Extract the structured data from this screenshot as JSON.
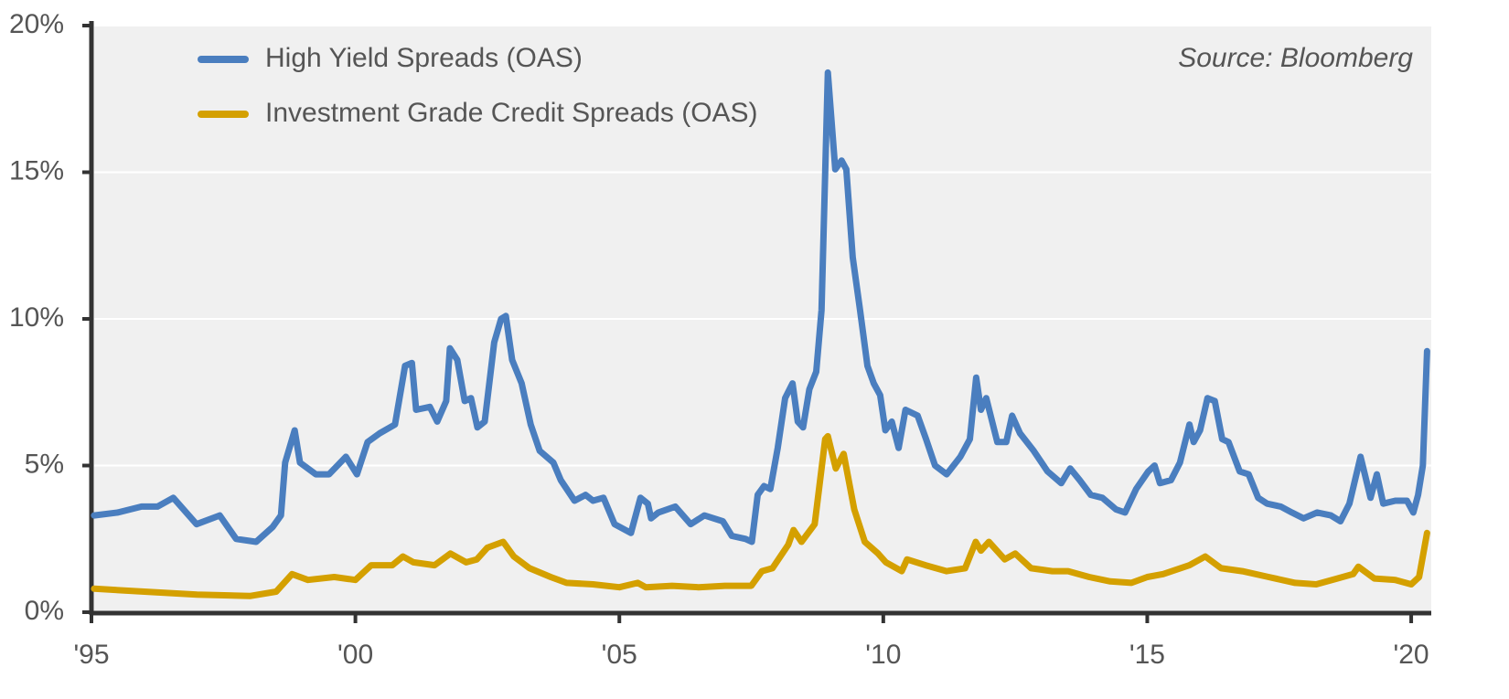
{
  "chart_data": {
    "type": "line",
    "annotation": "Source: Bloomberg",
    "xlim": [
      1995,
      2020.38
    ],
    "xticks": [
      {
        "value": 1995,
        "label": "'95"
      },
      {
        "value": 2000,
        "label": "'00"
      },
      {
        "value": 2005,
        "label": "'05"
      },
      {
        "value": 2010,
        "label": "'10"
      },
      {
        "value": 2015,
        "label": "'15"
      },
      {
        "value": 2020,
        "label": "'20"
      }
    ],
    "ylim": [
      0,
      20
    ],
    "yticks": [
      {
        "value": 0,
        "label": "0%"
      },
      {
        "value": 5,
        "label": "5%"
      },
      {
        "value": 10,
        "label": "10%"
      },
      {
        "value": 15,
        "label": "15%"
      },
      {
        "value": 20,
        "label": "20%"
      }
    ],
    "grid": true,
    "legend": "top-left",
    "series": [
      {
        "name": "High Yield Spreads (OAS)",
        "color": "#4a7ebf",
        "x": [
          1995.05,
          1995.5,
          1995.95,
          1996.25,
          1996.55,
          1996.99,
          1997.43,
          1997.74,
          1998.12,
          1998.43,
          1998.59,
          1998.67,
          1998.85,
          1998.95,
          1999.25,
          1999.5,
          1999.82,
          2000.03,
          2000.23,
          2000.46,
          2000.75,
          2000.94,
          2001.07,
          2001.15,
          2001.41,
          2001.55,
          2001.72,
          2001.79,
          2001.93,
          2002.07,
          2002.19,
          2002.31,
          2002.45,
          2002.63,
          2002.76,
          2002.85,
          2002.97,
          2003.15,
          2003.32,
          2003.49,
          2003.75,
          2003.89,
          2004.15,
          2004.36,
          2004.5,
          2004.7,
          2004.91,
          2005.22,
          2005.4,
          2005.54,
          2005.6,
          2005.74,
          2006.06,
          2006.35,
          2006.61,
          2006.96,
          2007.13,
          2007.39,
          2007.51,
          2007.62,
          2007.74,
          2007.86,
          2008.0,
          2008.14,
          2008.28,
          2008.38,
          2008.48,
          2008.6,
          2008.73,
          2008.83,
          2008.95,
          2009.09,
          2009.21,
          2009.3,
          2009.42,
          2009.56,
          2009.7,
          2009.82,
          2009.94,
          2010.04,
          2010.16,
          2010.29,
          2010.42,
          2010.65,
          2010.81,
          2010.98,
          2011.2,
          2011.46,
          2011.64,
          2011.76,
          2011.85,
          2011.95,
          2012.16,
          2012.33,
          2012.44,
          2012.59,
          2012.85,
          2013.11,
          2013.37,
          2013.54,
          2013.72,
          2013.93,
          2014.15,
          2014.41,
          2014.58,
          2014.79,
          2015.02,
          2015.14,
          2015.24,
          2015.45,
          2015.62,
          2015.8,
          2015.88,
          2016.0,
          2016.14,
          2016.28,
          2016.42,
          2016.54,
          2016.75,
          2016.92,
          2017.1,
          2017.27,
          2017.53,
          2017.74,
          2017.96,
          2018.22,
          2018.48,
          2018.66,
          2018.83,
          2019.04,
          2019.23,
          2019.35,
          2019.47,
          2019.7,
          2019.92,
          2020.04,
          2020.13,
          2020.22,
          2020.3
        ],
        "values": [
          3.3,
          3.4,
          3.6,
          3.6,
          3.9,
          3.0,
          3.3,
          2.5,
          2.4,
          2.9,
          3.3,
          5.1,
          6.2,
          5.1,
          4.7,
          4.7,
          5.3,
          4.7,
          5.8,
          6.1,
          6.4,
          8.4,
          8.5,
          6.9,
          7.0,
          6.5,
          7.2,
          9.0,
          8.6,
          7.2,
          7.3,
          6.3,
          6.5,
          9.2,
          10.0,
          10.1,
          8.6,
          7.8,
          6.4,
          5.5,
          5.1,
          4.5,
          3.8,
          4.0,
          3.8,
          3.9,
          3.0,
          2.7,
          3.9,
          3.7,
          3.2,
          3.4,
          3.6,
          3.0,
          3.3,
          3.1,
          2.6,
          2.5,
          2.4,
          4.0,
          4.3,
          4.2,
          5.6,
          7.3,
          7.8,
          6.5,
          6.3,
          7.6,
          8.2,
          10.3,
          18.4,
          15.1,
          15.4,
          15.1,
          12.1,
          10.3,
          8.4,
          7.8,
          7.4,
          6.2,
          6.5,
          5.6,
          6.9,
          6.7,
          5.9,
          5.0,
          4.7,
          5.3,
          5.9,
          8.0,
          6.9,
          7.3,
          5.8,
          5.8,
          6.7,
          6.1,
          5.5,
          4.8,
          4.4,
          4.9,
          4.5,
          4.0,
          3.9,
          3.5,
          3.4,
          4.2,
          4.8,
          5.0,
          4.4,
          4.5,
          5.1,
          6.4,
          5.8,
          6.2,
          7.3,
          7.2,
          5.9,
          5.8,
          4.8,
          4.7,
          3.9,
          3.7,
          3.6,
          3.4,
          3.2,
          3.4,
          3.3,
          3.1,
          3.7,
          5.3,
          3.9,
          4.7,
          3.7,
          3.8,
          3.8,
          3.4,
          4.0,
          5.0,
          8.9
        ]
      },
      {
        "name": "Investment Grade Credit Spreads (OAS)",
        "color": "#d4a000",
        "x": [
          1995.05,
          1996.0,
          1997.0,
          1998.0,
          1998.5,
          1998.8,
          1999.1,
          1999.6,
          2000.0,
          2000.3,
          2000.7,
          2000.9,
          2001.1,
          2001.5,
          2001.8,
          2002.1,
          2002.3,
          2002.5,
          2002.8,
          2003.0,
          2003.3,
          2003.7,
          2004.0,
          2004.5,
          2005.0,
          2005.35,
          2005.5,
          2006.0,
          2006.5,
          2007.0,
          2007.5,
          2007.7,
          2007.9,
          2008.2,
          2008.3,
          2008.45,
          2008.7,
          2008.9,
          2008.95,
          2009.1,
          2009.25,
          2009.45,
          2009.65,
          2009.9,
          2010.05,
          2010.35,
          2010.45,
          2010.8,
          2011.2,
          2011.55,
          2011.75,
          2011.85,
          2012.0,
          2012.3,
          2012.5,
          2012.8,
          2013.2,
          2013.5,
          2013.9,
          2014.3,
          2014.7,
          2015.0,
          2015.3,
          2015.8,
          2016.1,
          2016.4,
          2016.8,
          2017.3,
          2017.8,
          2018.2,
          2018.6,
          2018.9,
          2019.0,
          2019.3,
          2019.7,
          2020.0,
          2020.15,
          2020.3
        ],
        "values": [
          0.8,
          0.7,
          0.6,
          0.55,
          0.7,
          1.3,
          1.1,
          1.2,
          1.1,
          1.6,
          1.6,
          1.9,
          1.7,
          1.6,
          2.0,
          1.7,
          1.8,
          2.2,
          2.4,
          1.9,
          1.5,
          1.2,
          1.0,
          0.95,
          0.85,
          1.0,
          0.85,
          0.9,
          0.85,
          0.9,
          0.9,
          1.4,
          1.5,
          2.3,
          2.8,
          2.4,
          3.0,
          5.9,
          6.0,
          4.9,
          5.4,
          3.5,
          2.4,
          2.0,
          1.7,
          1.4,
          1.8,
          1.6,
          1.4,
          1.5,
          2.4,
          2.1,
          2.4,
          1.8,
          2.0,
          1.5,
          1.4,
          1.4,
          1.2,
          1.05,
          1.0,
          1.2,
          1.3,
          1.6,
          1.9,
          1.5,
          1.4,
          1.2,
          1.0,
          0.95,
          1.15,
          1.3,
          1.55,
          1.15,
          1.1,
          0.95,
          1.2,
          2.7
        ]
      }
    ]
  }
}
